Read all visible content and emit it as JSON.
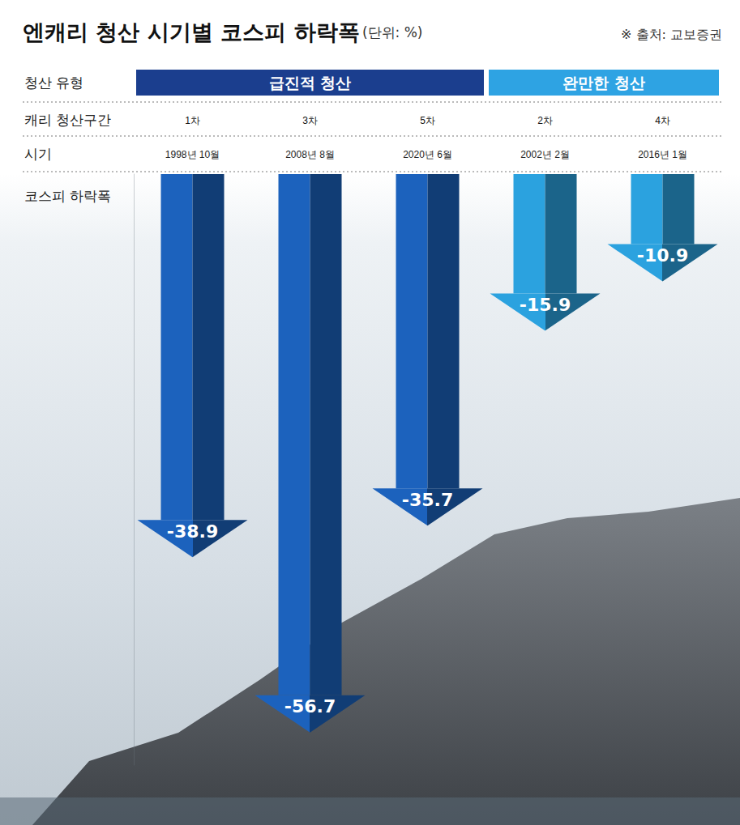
{
  "chart_data": {
    "type": "bar",
    "title": "엔캐리 청산 시기별 코스피 하락폭",
    "subtitle": "(단위: %)",
    "source": "※ 출처: 교보증권",
    "table": {
      "row_labels": [
        "청산 유형",
        "캐리 청산구간",
        "시기"
      ],
      "groups": [
        {
          "label": "급진적 청산",
          "members": [
            "1차",
            "3차",
            "5차"
          ],
          "color": "#1b3e8e"
        },
        {
          "label": "완만한 청산",
          "members": [
            "2차",
            "4차"
          ],
          "color": "#2ea3e3"
        }
      ]
    },
    "categories": [
      "1차",
      "3차",
      "5차",
      "2차",
      "4차"
    ],
    "periods": [
      "1998년 10월",
      "2008년 8월",
      "2020년 6월",
      "2002년 2월",
      "2016년 1월"
    ],
    "values_label": "코스피 하락폭",
    "values": [
      -38.9,
      -56.7,
      -35.7,
      -15.9,
      -10.9
    ],
    "colors": [
      "#1c62bd",
      "#1c62bd",
      "#1c62bd",
      "#2ba2df",
      "#2ba2df"
    ],
    "ylim": [
      -60,
      0
    ],
    "grid": false,
    "data_labels": true,
    "tick_labels": "x"
  }
}
